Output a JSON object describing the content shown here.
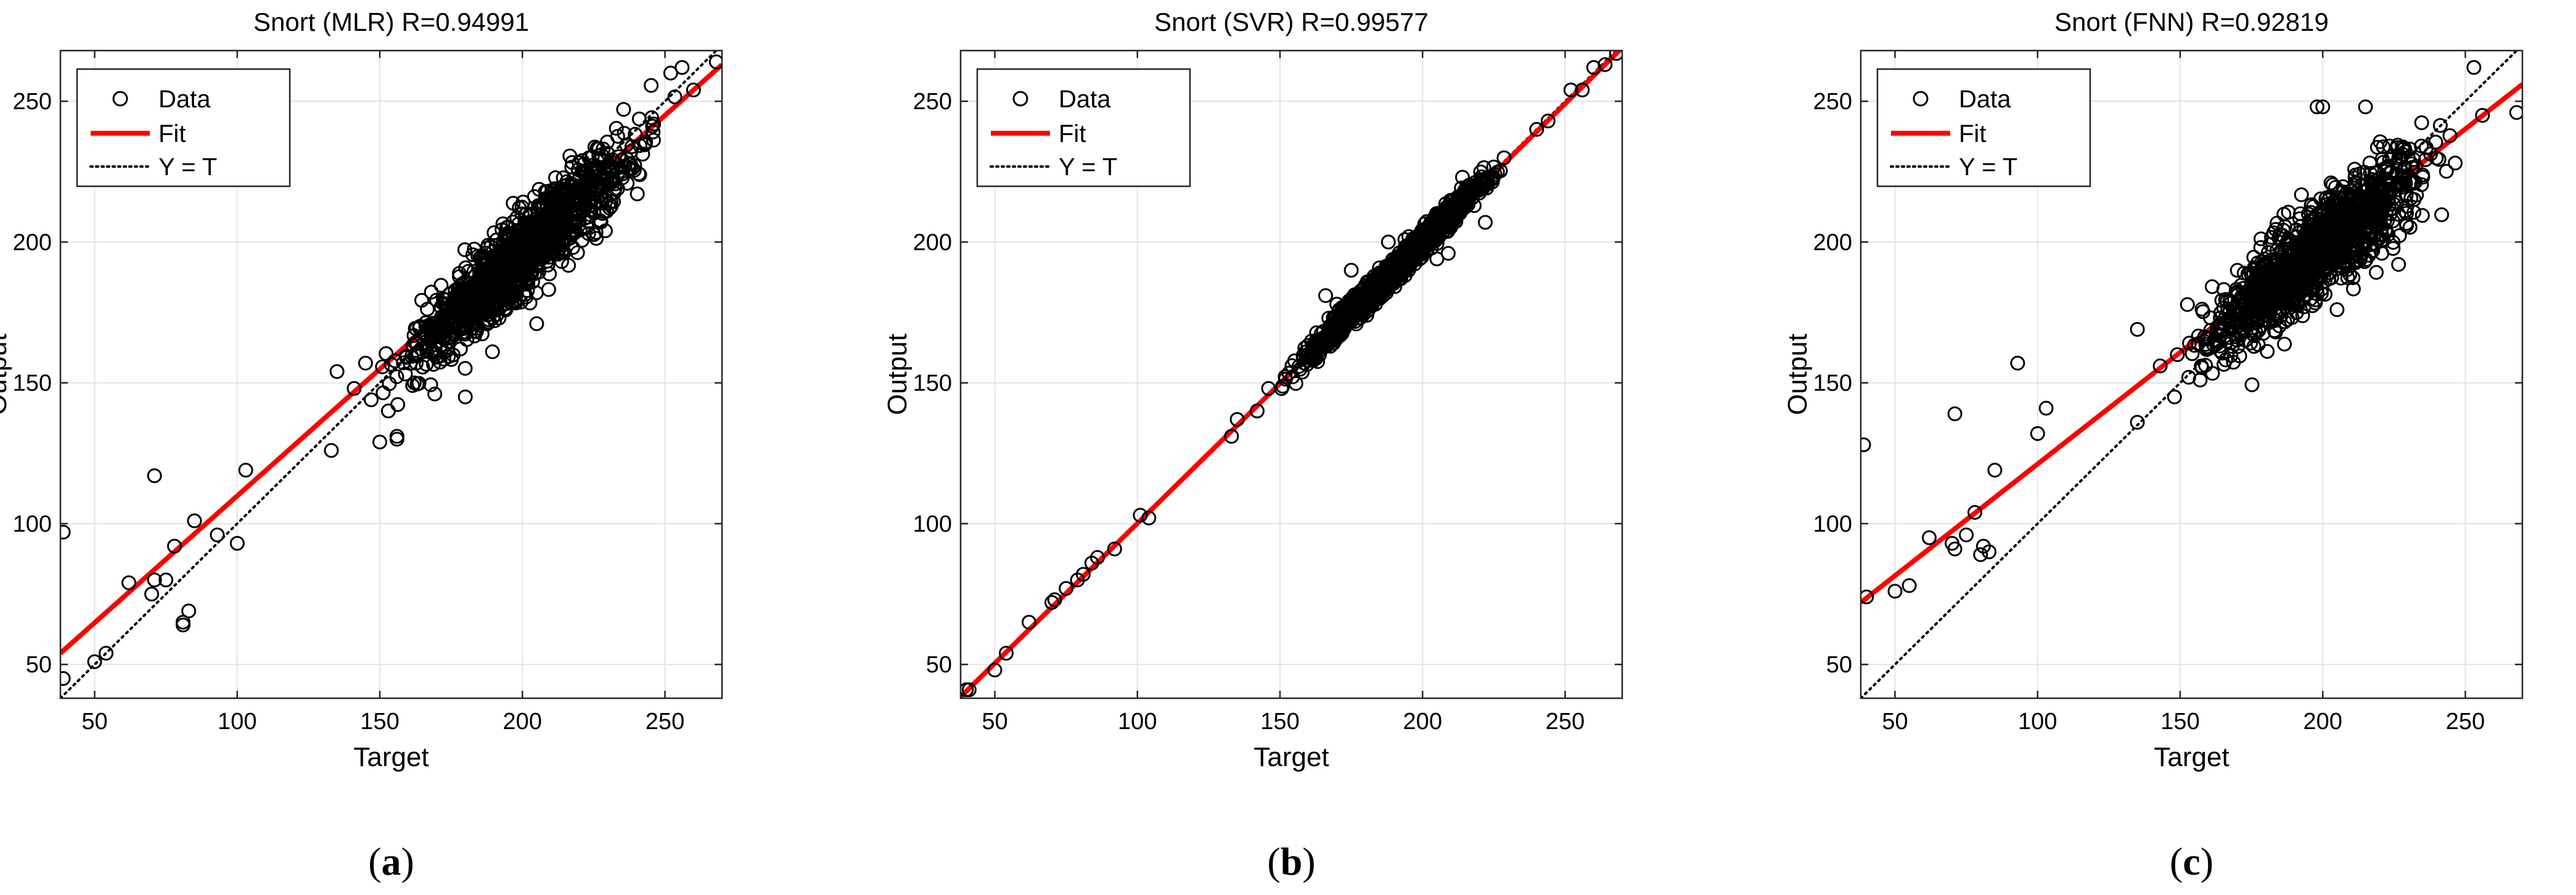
{
  "chart_data": [
    {
      "type": "scatter",
      "panel_label": "a",
      "title": "Snort (MLR) R=0.94991",
      "xlabel": "Target",
      "ylabel": "Output",
      "xlim": [
        38,
        270
      ],
      "ylim": [
        38,
        268
      ],
      "xticks": [
        50,
        100,
        150,
        200,
        250
      ],
      "yticks": [
        50,
        100,
        150,
        200,
        250
      ],
      "grid": true,
      "legend": {
        "position": "top-left",
        "entries": [
          "Data",
          "Fit",
          "Y = T"
        ]
      },
      "series": [
        {
          "name": "Data",
          "marker": "open-circle",
          "color": "#000000",
          "points": [
            [
              39,
              97
            ],
            [
              39,
              45
            ],
            [
              50,
              51
            ],
            [
              54,
              54
            ],
            [
              62,
              79
            ],
            [
              70,
              75
            ],
            [
              71,
              117
            ],
            [
              71,
              80
            ],
            [
              75,
              80
            ],
            [
              78,
              92
            ],
            [
              81,
              64
            ],
            [
              81,
              65
            ],
            [
              83,
              69
            ],
            [
              85,
              101
            ],
            [
              93,
              96
            ],
            [
              100,
              93
            ],
            [
              103,
              119
            ],
            [
              133,
              126
            ],
            [
              135,
              154
            ],
            [
              141,
              148
            ],
            [
              145,
              157
            ],
            [
              147,
              144
            ],
            [
              150,
              129
            ],
            [
              153,
              140
            ],
            [
              156,
              131
            ],
            [
              156,
              130
            ],
            [
              180,
              145
            ],
            [
              205,
              171
            ],
            [
              252,
              260
            ],
            [
              256,
              262
            ],
            [
              260,
              254
            ],
            [
              268,
              264
            ]
          ],
          "dense_cluster": {
            "x_range": [
              145,
              255
            ],
            "center_slope": 0.92,
            "center_intercept": 12,
            "spread": 10,
            "approx_count": 1200
          }
        },
        {
          "name": "Fit",
          "color": "#ff0000",
          "line": [
            [
              38,
              54
            ],
            [
              270,
              263
            ]
          ]
        },
        {
          "name": "Y = T",
          "color": "#000000",
          "style": "dotted",
          "line": [
            [
              38,
              38
            ],
            [
              268,
              268
            ]
          ]
        }
      ]
    },
    {
      "type": "scatter",
      "panel_label": "b",
      "title": "Snort (SVR) R=0.99577",
      "xlabel": "Target",
      "ylabel": "Output",
      "xlim": [
        38,
        270
      ],
      "ylim": [
        38,
        268
      ],
      "xticks": [
        50,
        100,
        150,
        200,
        250
      ],
      "yticks": [
        50,
        100,
        150,
        200,
        250
      ],
      "grid": true,
      "legend": {
        "position": "top-left",
        "entries": [
          "Data",
          "Fit",
          "Y = T"
        ]
      },
      "series": [
        {
          "name": "Data",
          "marker": "open-circle",
          "color": "#000000",
          "points": [
            [
              40,
              41
            ],
            [
              41,
              41
            ],
            [
              50,
              48
            ],
            [
              54,
              54
            ],
            [
              62,
              65
            ],
            [
              70,
              72
            ],
            [
              71,
              73
            ],
            [
              75,
              77
            ],
            [
              79,
              80
            ],
            [
              81,
              82
            ],
            [
              84,
              86
            ],
            [
              86,
              88
            ],
            [
              92,
              91
            ],
            [
              101,
              103
            ],
            [
              104,
              102
            ],
            [
              133,
              131
            ],
            [
              135,
              137
            ],
            [
              142,
              140
            ],
            [
              146,
              148
            ],
            [
              166,
              181
            ],
            [
              175,
              190
            ],
            [
              188,
              200
            ],
            [
              205,
              194
            ],
            [
              209,
              196
            ],
            [
              214,
              223
            ],
            [
              222,
              207
            ],
            [
              240,
              240
            ],
            [
              244,
              243
            ],
            [
              252,
              254
            ],
            [
              256,
              254
            ],
            [
              260,
              262
            ],
            [
              264,
              263
            ],
            [
              268,
              267
            ]
          ],
          "dense_cluster": {
            "x_range": [
              145,
              235
            ],
            "center_slope": 1.0,
            "center_intercept": 0,
            "spread": 3,
            "approx_count": 1200
          }
        },
        {
          "name": "Fit",
          "color": "#ff0000",
          "line": [
            [
              38,
              38.5
            ],
            [
              270,
              269
            ]
          ]
        },
        {
          "name": "Y = T",
          "color": "#000000",
          "style": "dotted",
          "line": [
            [
              38,
              38
            ],
            [
              268,
              268
            ]
          ]
        }
      ]
    },
    {
      "type": "scatter",
      "panel_label": "c",
      "title": "Snort (FNN) R=0.92819",
      "xlabel": "Target",
      "ylabel": "Output",
      "xlim": [
        38,
        270
      ],
      "ylim": [
        38,
        268
      ],
      "xticks": [
        50,
        100,
        150,
        200,
        250
      ],
      "yticks": [
        50,
        100,
        150,
        200,
        250
      ],
      "grid": true,
      "legend": {
        "position": "top-left",
        "entries": [
          "Data",
          "Fit",
          "Y = T"
        ]
      },
      "series": [
        {
          "name": "Data",
          "marker": "open-circle",
          "color": "#000000",
          "points": [
            [
              39,
              128
            ],
            [
              40,
              74
            ],
            [
              50,
              76
            ],
            [
              55,
              78
            ],
            [
              62,
              95
            ],
            [
              70,
              93
            ],
            [
              71,
              139
            ],
            [
              71,
              91
            ],
            [
              75,
              96
            ],
            [
              78,
              104
            ],
            [
              80,
              89
            ],
            [
              81,
              92
            ],
            [
              83,
              90
            ],
            [
              85,
              119
            ],
            [
              93,
              157
            ],
            [
              100,
              132
            ],
            [
              103,
              141
            ],
            [
              135,
              136
            ],
            [
              135,
              169
            ],
            [
              143,
              156
            ],
            [
              148,
              145
            ],
            [
              149,
              160
            ],
            [
              153,
              152
            ],
            [
              157,
              151
            ],
            [
              198,
              248
            ],
            [
              200,
              248
            ],
            [
              205,
              176
            ],
            [
              215,
              248
            ],
            [
              253,
              262
            ],
            [
              256,
              245
            ],
            [
              268,
              246
            ]
          ],
          "dense_cluster": {
            "x_range": [
              145,
              250
            ],
            "center_slope": 0.8,
            "center_intercept": 38,
            "spread": 11,
            "approx_count": 1200
          }
        },
        {
          "name": "Fit",
          "color": "#ff0000",
          "line": [
            [
              38,
              72
            ],
            [
              270,
              256
            ]
          ]
        },
        {
          "name": "Y = T",
          "color": "#000000",
          "style": "dotted",
          "line": [
            [
              38,
              38
            ],
            [
              268,
              268
            ]
          ]
        }
      ]
    }
  ]
}
